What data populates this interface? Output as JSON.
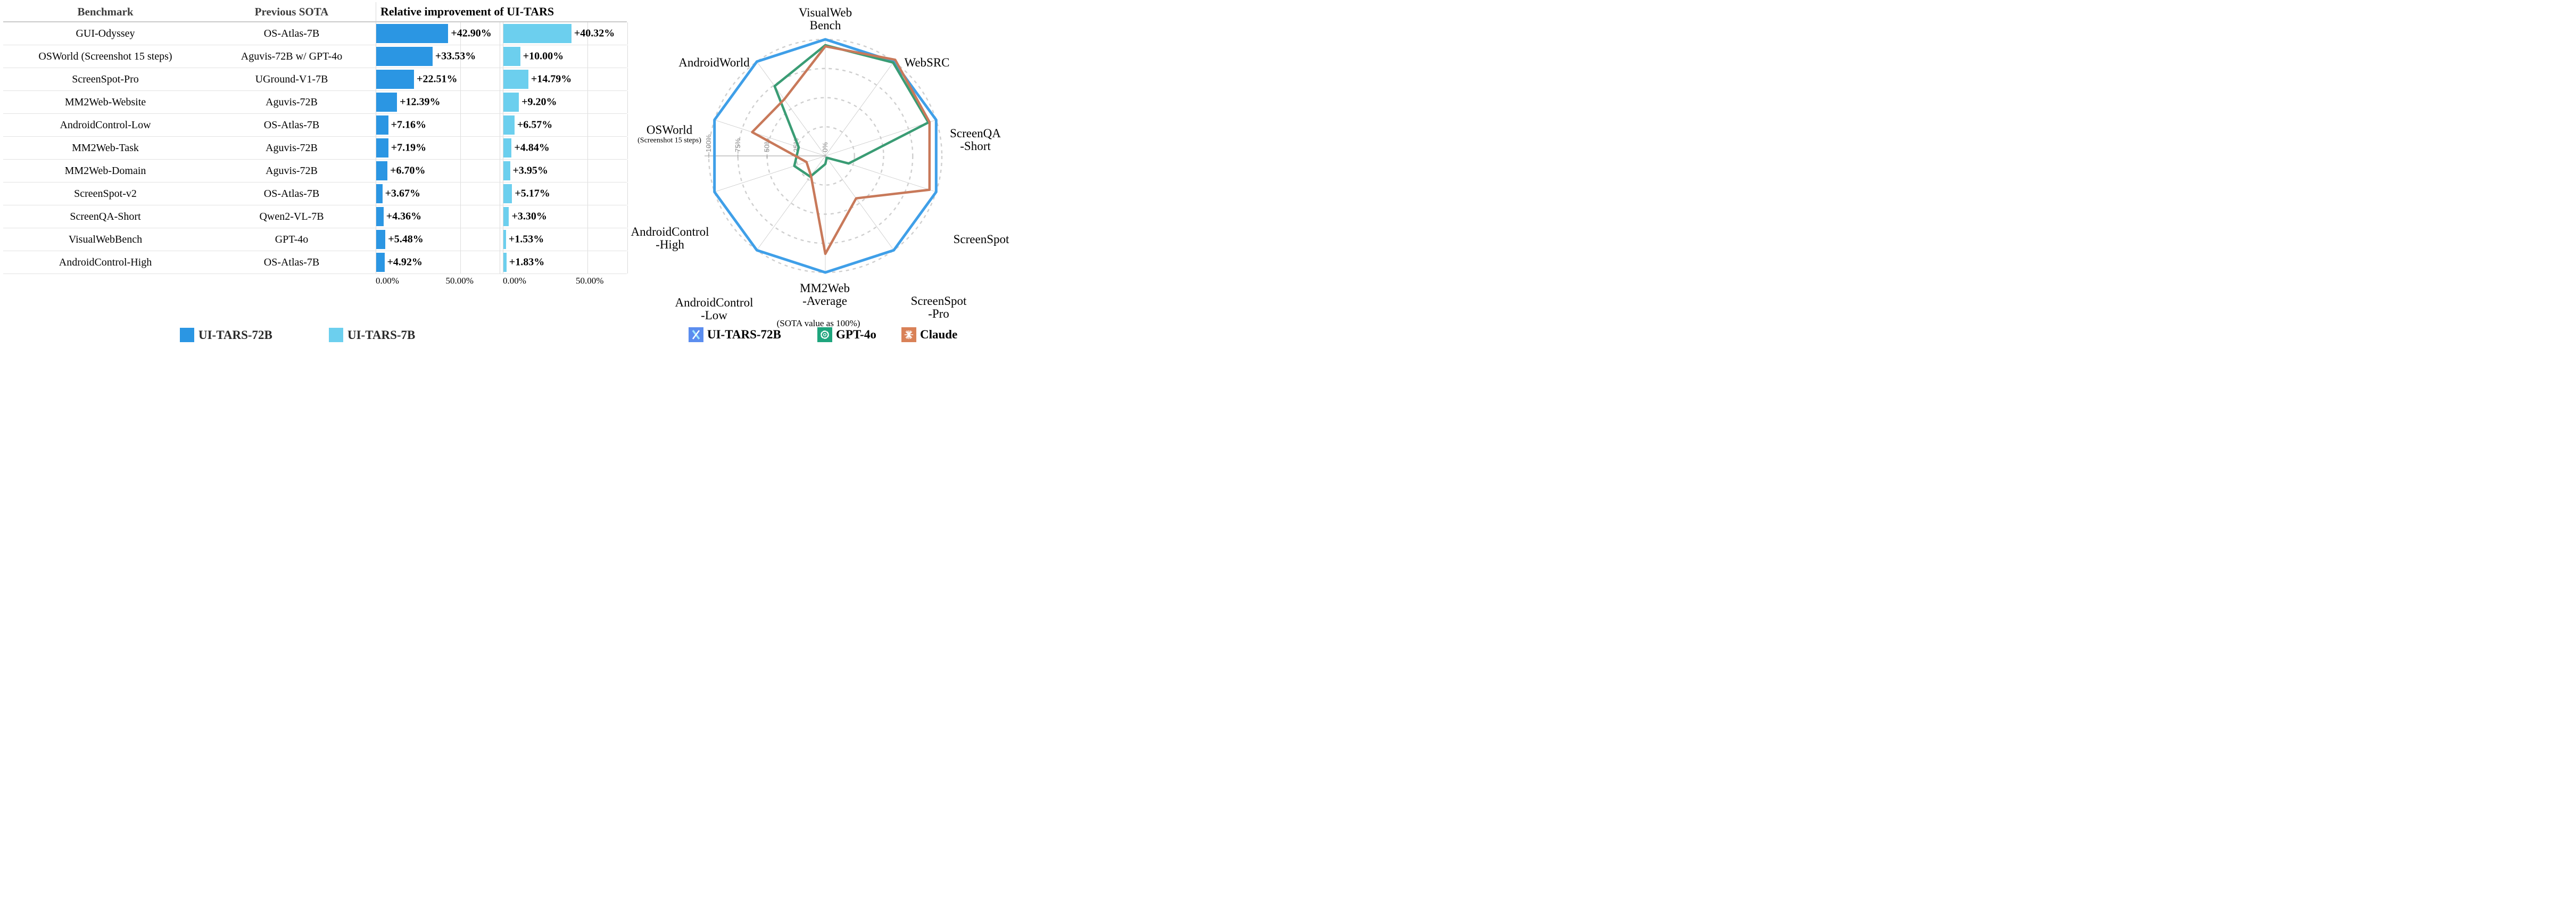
{
  "table": {
    "header": {
      "benchmark": "Benchmark",
      "previous_sota": "Previous SOTA",
      "improvement": "Relative improvement of UI-TARS"
    },
    "x_axis": {
      "tick_zero": "0.00%",
      "tick_fifty": "50.00%"
    }
  },
  "radar": {
    "subtitle": "(SOTA value as 100%)",
    "legend": [
      {
        "label": "UI-TARS-72B",
        "color": "#5b8def",
        "icon": "ui-tars-logo"
      },
      {
        "label": "GPT-4o",
        "color": "#1ea57d",
        "icon": "openai-logo"
      },
      {
        "label": "Claude",
        "color": "#d98157",
        "icon": "claude-logo"
      }
    ]
  },
  "chart_data": [
    {
      "type": "bar",
      "orientation": "horizontal",
      "title": "Relative improvement of UI-TARS",
      "categories": [
        "GUI-Odyssey",
        "OSWorld (Screenshot 15 steps)",
        "ScreenSpot-Pro",
        "MM2Web-Website",
        "AndroidControl-Low",
        "MM2Web-Task",
        "MM2Web-Domain",
        "ScreenSpot-v2",
        "ScreenQA-Short",
        "VisualWebBench",
        "AndroidControl-High"
      ],
      "previous_sota": [
        "OS-Atlas-7B",
        "Aguvis-72B w/ GPT-4o",
        "UGround-V1-7B",
        "Aguvis-72B",
        "OS-Atlas-7B",
        "Aguvis-72B",
        "Aguvis-72B",
        "OS-Atlas-7B",
        "Qwen2-VL-7B",
        "GPT-4o",
        "OS-Atlas-7B"
      ],
      "series": [
        {
          "name": "UI-TARS-72B",
          "color": "#2b96e3",
          "values": [
            42.9,
            33.53,
            22.51,
            12.39,
            7.16,
            7.19,
            6.7,
            3.67,
            4.36,
            5.48,
            4.92
          ]
        },
        {
          "name": "UI-TARS-7B",
          "color": "#6ccfee",
          "values": [
            40.32,
            10.0,
            14.79,
            9.2,
            6.57,
            4.84,
            3.95,
            5.17,
            3.3,
            1.53,
            1.83
          ]
        }
      ],
      "xlim": [
        0,
        73.5
      ],
      "x_ticks": [
        "0.00%",
        "50.00%"
      ],
      "gridline_value": 50,
      "value_label_format": "+{value}%"
    },
    {
      "type": "radar",
      "subtitle": "(SOTA value as 100%)",
      "categories": [
        {
          "label": "VisualWeb\nBench"
        },
        {
          "label": "WebSRC"
        },
        {
          "label": "ScreenQA\n-Short"
        },
        {
          "label": "ScreenSpot"
        },
        {
          "label": "ScreenSpot\n-Pro"
        },
        {
          "label": "MM2Web\n-Average"
        },
        {
          "label": "AndroidControl\n-Low"
        },
        {
          "label": "AndroidControl\n-High"
        },
        {
          "label": "OSWorld",
          "sub": "(Screenshot 15 steps)"
        },
        {
          "label": "AndroidWorld"
        }
      ],
      "angles_deg": [
        90,
        54,
        18,
        -18,
        -54,
        -90,
        -126,
        -162,
        162,
        126
      ],
      "rlim": [
        0,
        100
      ],
      "ring_values": [
        25,
        50,
        75,
        100
      ],
      "tick_labels": [
        "100%",
        "75%",
        "50%",
        "25%",
        "0%"
      ],
      "grid": true,
      "legend_position": "bottom",
      "series": [
        {
          "name": "UI-TARS-72B",
          "color": "#3f9fe8",
          "values": [
            100,
            100,
            100,
            100,
            100,
            100,
            100,
            100,
            100,
            100
          ]
        },
        {
          "name": "GPT-4o",
          "color": "#3a9c74",
          "values": [
            95,
            99,
            93,
            21,
            2,
            7,
            22,
            28,
            24,
            74
          ]
        },
        {
          "name": "Claude",
          "color": "#c8795a",
          "values": [
            94,
            102,
            94,
            94,
            45,
            84,
            21,
            17,
            66,
            60
          ]
        }
      ]
    }
  ]
}
